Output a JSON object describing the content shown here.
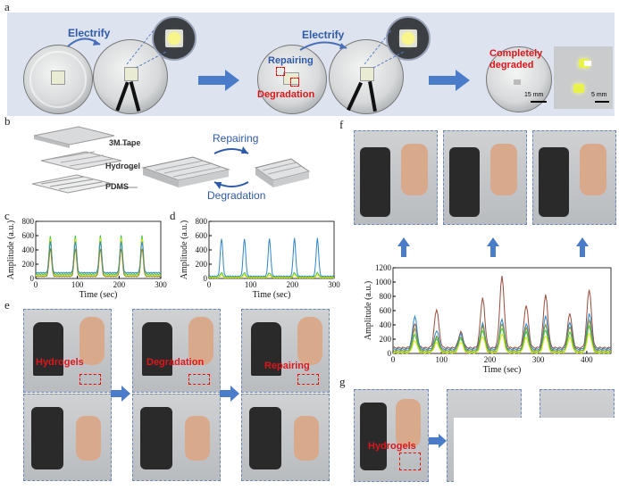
{
  "labels": {
    "a": "a",
    "b": "b",
    "c": "c",
    "d": "d",
    "e": "e",
    "f": "f",
    "g": "g"
  },
  "panel_a": {
    "electrify_1": "Electrify",
    "electrify_2": "Electrify",
    "repairing": "Repairing",
    "degradation": "Degradation",
    "completely": "Completely",
    "degraded": "degraded",
    "scale_1": "15 mm",
    "scale_2": "5 mm"
  },
  "panel_b": {
    "tape": "3M Tape",
    "hydrogel": "Hydrogel",
    "pdms": "PDMS",
    "repairing": "Repairing",
    "degradation": "Degradation"
  },
  "panel_e": {
    "hydrogels": "Hydrogels",
    "degradation": "Degradation",
    "repairing": "Repairing"
  },
  "panel_g": {
    "hydrogels": "Hydrogels"
  },
  "colors": {
    "green": "#3cc63c",
    "yellow": "#e8e21a",
    "blue": "#2f86c8",
    "olive": "#8a8a2a",
    "brown": "#9a4b3c",
    "panel_bg": "#dde3ef",
    "arrow": "#4a7cc9"
  },
  "chart_data": [
    {
      "id": "c",
      "type": "line",
      "xlabel": "Time (sec)",
      "ylabel": "Amplitude (a.u.)",
      "xlim": [
        0,
        300
      ],
      "ylim": [
        0,
        800
      ],
      "xticks": [
        "0",
        "100",
        "200",
        "300"
      ],
      "yticks": [
        "0",
        "200",
        "400",
        "600",
        "800"
      ],
      "peak_x": [
        35,
        95,
        155,
        205,
        255
      ],
      "series": [
        {
          "color": "green",
          "peak": 600,
          "base": 60
        },
        {
          "color": "yellow",
          "peak": 560,
          "base": 40
        },
        {
          "color": "blue",
          "peak": 520,
          "base": 80
        },
        {
          "color": "olive",
          "peak": 420,
          "base": 30
        }
      ]
    },
    {
      "id": "d",
      "type": "line",
      "xlabel": "Time (sec)",
      "ylabel": "Amplitude (a.u.)",
      "xlim": [
        0,
        300
      ],
      "ylim": [
        0,
        800
      ],
      "xticks": [
        "0",
        "100",
        "200",
        "300"
      ],
      "yticks": [
        "0",
        "200",
        "400",
        "600",
        "800"
      ],
      "peak_x": [
        30,
        85,
        145,
        205,
        260
      ],
      "series": [
        {
          "color": "blue",
          "peak": 560,
          "base": 30
        },
        {
          "color": "green",
          "peak": 80,
          "base": 20
        },
        {
          "color": "yellow",
          "peak": 50,
          "base": 10
        }
      ]
    },
    {
      "id": "f",
      "type": "line",
      "xlabel": "Time (sec)",
      "ylabel": "Amplitude (a.u.)",
      "xlim": [
        0,
        450
      ],
      "ylim": [
        0,
        1200
      ],
      "xticks": [
        "0",
        "100",
        "200",
        "300",
        "400"
      ],
      "yticks": [
        "0",
        "200",
        "400",
        "600",
        "800",
        "1000",
        "1200"
      ],
      "peak_x": [
        45,
        90,
        140,
        185,
        225,
        275,
        315,
        365,
        405
      ],
      "series": [
        {
          "color": "brown",
          "peaks": [
            420,
            620,
            300,
            780,
            1080,
            680,
            820,
            560,
            900
          ],
          "base": 80
        },
        {
          "color": "blue",
          "peaks": [
            520,
            320,
            270,
            420,
            480,
            420,
            520,
            440,
            560
          ],
          "base": 60
        },
        {
          "color": "olive",
          "peaks": [
            340,
            240,
            230,
            380,
            420,
            360,
            400,
            380,
            460
          ],
          "base": 40
        },
        {
          "color": "green",
          "peaks": [
            260,
            200,
            210,
            320,
            360,
            300,
            330,
            300,
            380
          ],
          "base": 20
        },
        {
          "color": "yellow",
          "peaks": [
            180,
            150,
            160,
            240,
            270,
            220,
            250,
            220,
            280
          ],
          "base": 10
        }
      ]
    }
  ]
}
